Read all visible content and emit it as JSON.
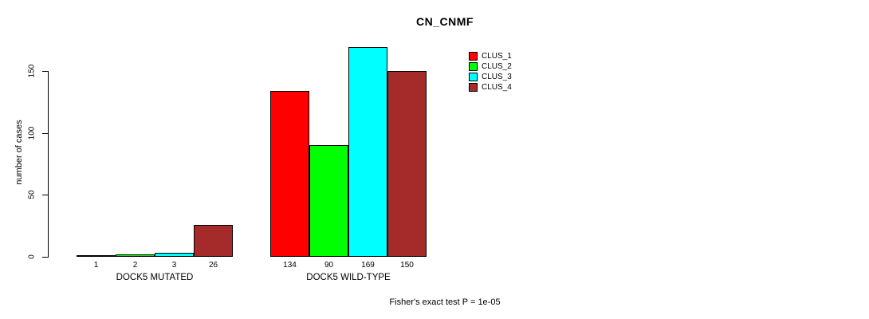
{
  "chart_data": {
    "type": "bar",
    "title": "CN_CNMF",
    "ylabel": "number of cases",
    "xlabel": "",
    "ylim": [
      0,
      175
    ],
    "yticks": [
      0,
      50,
      100,
      150
    ],
    "grid": false,
    "legend_position": "top-right",
    "categories": [
      "DOCK5 MUTATED",
      "DOCK5 WILD-TYPE"
    ],
    "series": [
      {
        "name": "CLUS_1",
        "color": "#ff0000",
        "values": [
          1,
          134
        ]
      },
      {
        "name": "CLUS_2",
        "color": "#00ff00",
        "values": [
          2,
          90
        ]
      },
      {
        "name": "CLUS_3",
        "color": "#00ffff",
        "values": [
          3,
          169
        ]
      },
      {
        "name": "CLUS_4",
        "color": "#a52a2a",
        "values": [
          26,
          150
        ]
      }
    ],
    "annotation": "Fisher's exact test P = 1e-05",
    "axis_color": "#000000",
    "background_color": "#ffffff"
  }
}
